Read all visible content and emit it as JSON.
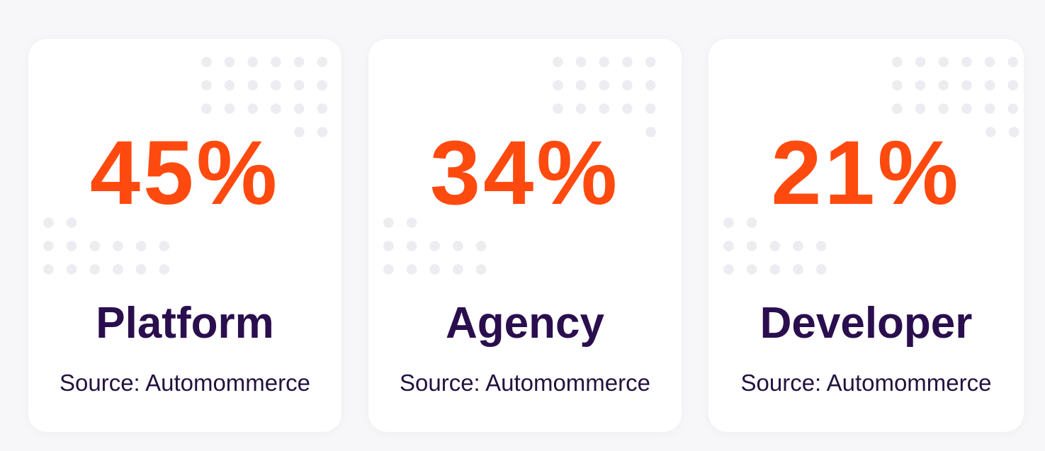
{
  "cards": [
    {
      "stat": "45%",
      "label": "Platform",
      "source": "Source: Automommerce"
    },
    {
      "stat": "34%",
      "label": "Agency",
      "source": "Source: Automommerce"
    },
    {
      "stat": "21%",
      "label": "Developer",
      "source": "Source: Automommerce"
    }
  ]
}
